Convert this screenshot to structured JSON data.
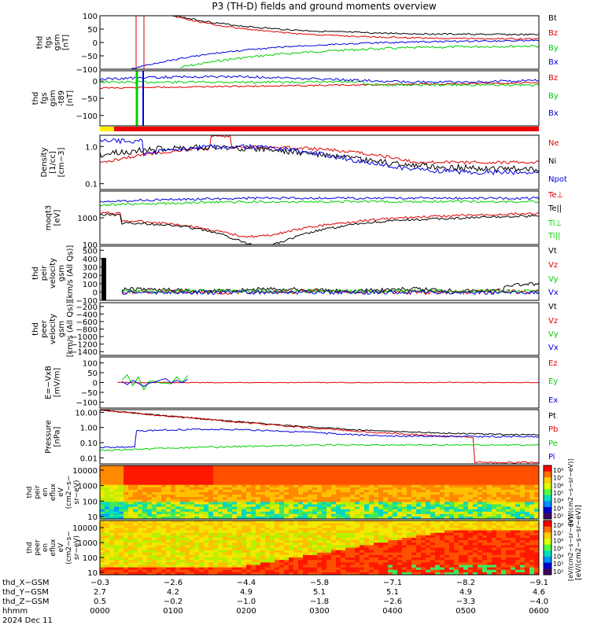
{
  "title": "P3 (TH-D) fields and ground moments overview",
  "colors": {
    "black": "#000000",
    "red": "#e00000",
    "green": "#00d000",
    "blue": "#0000e0",
    "yellow": "#ffee00",
    "flag_red": "#ee0000"
  },
  "chart_data": [
    {
      "id": "fgs",
      "type": "line",
      "ylabel_lines": [
        "thd",
        "fgs",
        "gsm",
        "[nT]"
      ],
      "ylim": [
        -100,
        100
      ],
      "yticks": [
        "100",
        "50",
        "0",
        "−50",
        "−100"
      ],
      "ytick_values": [
        100,
        50,
        0,
        -50,
        -100
      ],
      "legend": [
        {
          "label": "Bt",
          "color": "#000000"
        },
        {
          "label": "Bz",
          "color": "#e00000"
        },
        {
          "label": "By",
          "color": "#00d000"
        },
        {
          "label": "Bx",
          "color": "#0000e0"
        }
      ]
    },
    {
      "id": "fgs_dsl",
      "type": "line",
      "ylabel_lines": [
        "thd",
        "fgs",
        "gsm",
        "-t89",
        "[nT]"
      ],
      "ylim": [
        -130,
        30
      ],
      "yticks": [
        "0",
        "−50",
        "−100"
      ],
      "ytick_values": [
        0,
        -50,
        -100
      ],
      "legend": [
        {
          "label": "Bz",
          "color": "#e00000"
        },
        {
          "label": "By",
          "color": "#00d000"
        },
        {
          "label": "Bx",
          "color": "#0000e0"
        }
      ]
    },
    {
      "id": "density",
      "type": "line",
      "scale": "log",
      "ylabel_lines": [
        "Density",
        "[1/cc]",
        "[cm−3]"
      ],
      "ylim": [
        0.07,
        2
      ],
      "yticks": [
        "1.0",
        "0.1"
      ],
      "ytick_values": [
        1,
        0.1
      ],
      "legend": [
        {
          "label": "Ne",
          "color": "#e00000"
        },
        {
          "label": "Ni",
          "color": "#000000"
        },
        {
          "label": "Npot",
          "color": "#0000e0"
        }
      ]
    },
    {
      "id": "temperature",
      "type": "line",
      "scale": "log",
      "ylabel_lines": [
        "moqt3",
        "[eV]"
      ],
      "ylim": [
        100,
        10000
      ],
      "yticks": [
        "1000",
        "100"
      ],
      "ytick_values": [
        1000,
        100
      ],
      "legend": [
        {
          "label": "Te⊥",
          "color": "#e00000"
        },
        {
          "label": "Te||",
          "color": "#000000"
        },
        {
          "label": "Ti⊥",
          "color": "#00d000"
        },
        {
          "label": "Ti||",
          "color": "#00d000"
        }
      ]
    },
    {
      "id": "peir_velocity",
      "type": "line",
      "ylabel_lines": [
        "thd",
        "peir",
        "velocity",
        "gsm",
        "[km/s (All Qs)]"
      ],
      "ylim": [
        -100,
        550
      ],
      "yticks": [
        "500",
        "400",
        "300",
        "200",
        "100",
        "0",
        "−100"
      ],
      "ytick_values": [
        500,
        400,
        300,
        200,
        100,
        0,
        -100
      ],
      "legend": [
        {
          "label": "Vt",
          "color": "#000000"
        },
        {
          "label": "Vz",
          "color": "#e00000"
        },
        {
          "label": "Vy",
          "color": "#00d000"
        },
        {
          "label": "Vx",
          "color": "#0000e0"
        }
      ]
    },
    {
      "id": "peer_velocity",
      "type": "line",
      "ylabel_lines": [
        "thd",
        "peer",
        "velocity",
        "gsm",
        "[km/s (All Qs)]"
      ],
      "ylim": [
        -1500,
        -100
      ],
      "yticks": [
        "−200",
        "−400",
        "−600",
        "−800",
        "−1000",
        "−1200",
        "−1400"
      ],
      "ytick_values": [
        -200,
        -400,
        -600,
        -800,
        -1000,
        -1200,
        -1400
      ],
      "legend": [
        {
          "label": "Vt",
          "color": "#000000"
        },
        {
          "label": "Vz",
          "color": "#e00000"
        },
        {
          "label": "Vy",
          "color": "#00d000"
        },
        {
          "label": "Vx",
          "color": "#0000e0"
        }
      ]
    },
    {
      "id": "efield",
      "type": "line",
      "ylabel_lines": [
        "E=−VxB",
        "[mV/m]"
      ],
      "ylim": [
        -130,
        130
      ],
      "yticks": [
        "100",
        "50",
        "0",
        "−50",
        "−100"
      ],
      "ytick_values": [
        100,
        50,
        0,
        -50,
        -100
      ],
      "legend": [
        {
          "label": "Ez",
          "color": "#e00000"
        },
        {
          "label": "Ey",
          "color": "#00d000"
        },
        {
          "label": "Ex",
          "color": "#0000e0"
        }
      ]
    },
    {
      "id": "pressure",
      "type": "line",
      "scale": "log",
      "ylabel_lines": [
        "Pressure",
        "[nPa]"
      ],
      "ylim": [
        0.004,
        15
      ],
      "yticks": [
        "10.00",
        "1.00",
        "0.10",
        "0.01"
      ],
      "ytick_values": [
        10,
        1,
        0.1,
        0.01
      ],
      "legend": [
        {
          "label": "Pt",
          "color": "#000000"
        },
        {
          "label": "Pb",
          "color": "#e00000"
        },
        {
          "label": "Pe",
          "color": "#00d000"
        },
        {
          "label": "Pi",
          "color": "#0000e0"
        }
      ]
    },
    {
      "id": "peir_spec",
      "type": "heatmap",
      "scale": "log",
      "ylabel_lines": [
        "thd",
        "peir",
        "en",
        "eflux",
        "eV",
        "(cm2−s−",
        "sr−eV)"
      ],
      "ylim": [
        7,
        20000
      ],
      "yticks": [
        "10000",
        "1000",
        "100",
        "10"
      ],
      "ytick_values": [
        10000,
        1000,
        100,
        10
      ],
      "colorbar_ticks": [
        "10⁸",
        "10⁷",
        "10⁶",
        "10⁵",
        "10⁴",
        "10³",
        "10²"
      ],
      "colorbar_label": "[eV/(cm2−s−sr−eV)]"
    },
    {
      "id": "peer_spec",
      "type": "heatmap",
      "scale": "log",
      "ylabel_lines": [
        "thd",
        "peer",
        "en",
        "eflux",
        "eV",
        "(cm2−s−",
        "sr−eV)"
      ],
      "ylim": [
        7,
        30000
      ],
      "yticks": [
        "10000",
        "1000",
        "100",
        "10"
      ],
      "ytick_values": [
        10000,
        1000,
        100,
        10
      ],
      "colorbar_ticks": [
        "10⁸",
        "10⁷",
        "10⁶",
        "10⁵",
        "10⁴",
        "10³",
        "10²"
      ],
      "colorbar_label": "[eV/(cm2−s−sr−eV)]"
    }
  ],
  "colorbar_side_label": "[eV/(cm2−s−sr−eV)]",
  "x_axis": {
    "rows": [
      {
        "label": "thd_X−GSM",
        "values": [
          "−0.3",
          "−2.6",
          "−4.4",
          "−5.8",
          "−7.1",
          "−8.2",
          "−9.1"
        ]
      },
      {
        "label": "thd_Y−GSM",
        "values": [
          "2.7",
          "4.2",
          "4.9",
          "5.1",
          "5.1",
          "4.9",
          "4.6"
        ]
      },
      {
        "label": "thd_Z−GSM",
        "values": [
          "0.5",
          "−0.2",
          "−1.0",
          "−1.8",
          "−2.6",
          "−3.3",
          "−4.0"
        ]
      },
      {
        "label": "hhmm",
        "values": [
          "0000",
          "0100",
          "0200",
          "0300",
          "0400",
          "0500",
          "0600"
        ]
      }
    ],
    "date": "2024 Dec 11"
  }
}
